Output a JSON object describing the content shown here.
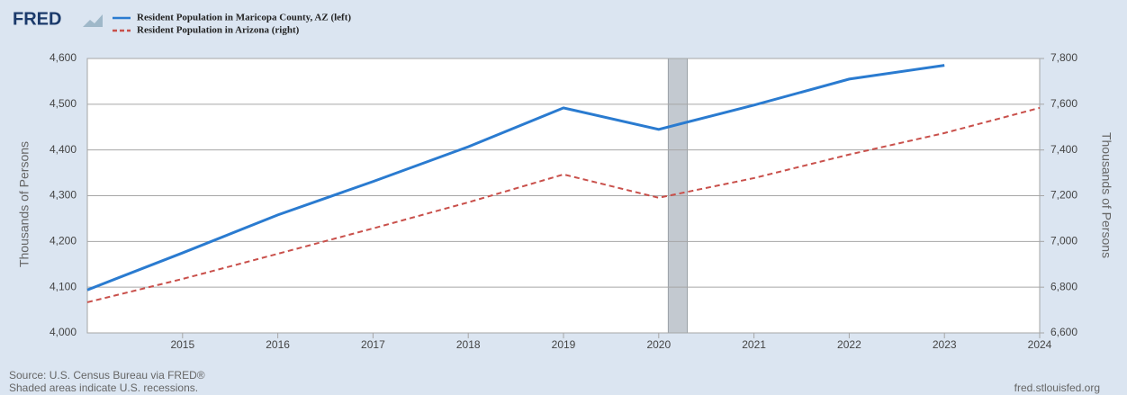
{
  "chart_data": {
    "type": "line",
    "logo": "FRED",
    "x": [
      2014,
      2015,
      2016,
      2017,
      2018,
      2019,
      2020,
      2021,
      2022,
      2023,
      2024
    ],
    "series": [
      {
        "name": "Resident Population in Maricopa County, AZ (left)",
        "color": "#2a7bd0",
        "dash": false,
        "axis": "y",
        "values": [
          4094,
          4175,
          4258,
          4331,
          4407,
          4492,
          4445,
          4498,
          4555,
          4585,
          null
        ]
      },
      {
        "name": "Resident Population in Arizona (right)",
        "color": "#c9504b",
        "dash": true,
        "axis": "y2",
        "values": [
          6734,
          6836,
          6946,
          7057,
          7171,
          7293,
          7191,
          7277,
          7380,
          7474,
          7584
        ]
      }
    ],
    "xlim": [
      2014,
      2024
    ],
    "xticks": [
      2015,
      2016,
      2017,
      2018,
      2019,
      2020,
      2021,
      2022,
      2023,
      2024
    ],
    "ylim": [
      4000,
      4600
    ],
    "yticks": [
      {
        "value": 4000,
        "label": "4,000"
      },
      {
        "value": 4100,
        "label": "4,100"
      },
      {
        "value": 4200,
        "label": "4,200"
      },
      {
        "value": 4300,
        "label": "4,300"
      },
      {
        "value": 4400,
        "label": "4,400"
      },
      {
        "value": 4500,
        "label": "4,500"
      },
      {
        "value": 4600,
        "label": "4,600"
      }
    ],
    "y2lim": [
      6600,
      7800
    ],
    "y2ticks": [
      {
        "value": 6600,
        "label": "6,600"
      },
      {
        "value": 6800,
        "label": "6,800"
      },
      {
        "value": 7000,
        "label": "7,000"
      },
      {
        "value": 7200,
        "label": "7,200"
      },
      {
        "value": 7400,
        "label": "7,400"
      },
      {
        "value": 7600,
        "label": "7,600"
      },
      {
        "value": 7800,
        "label": "7,800"
      }
    ],
    "ylabel": "Thousands of Persons",
    "y2label": "Thousands of Persons",
    "recessions": [
      [
        2020.1,
        2020.3
      ]
    ],
    "grid": true,
    "source": "Source: U.S. Census Bureau via FRED®",
    "note": "Shaded areas indicate U.S. recessions.",
    "site": "fred.stlouisfed.org"
  }
}
